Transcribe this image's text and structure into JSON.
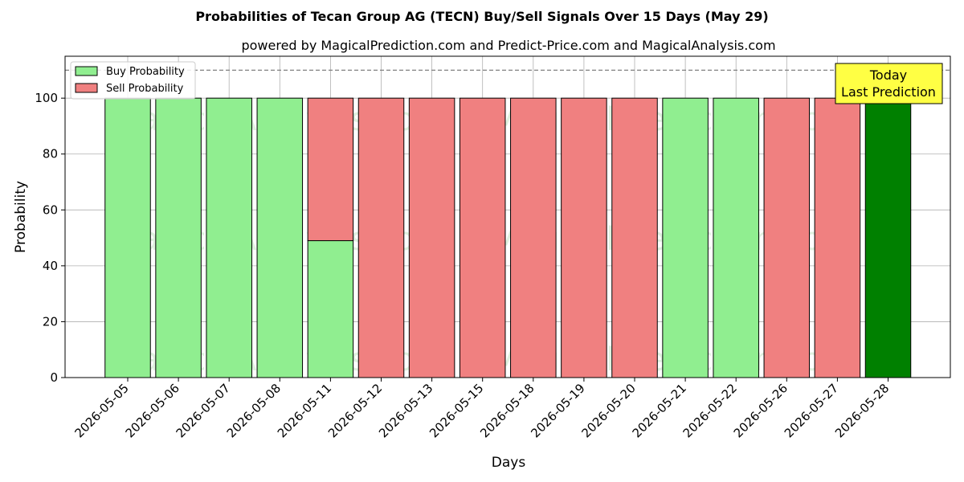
{
  "chart_data": {
    "type": "bar",
    "title": "Probabilities of Tecan Group AG (TECN) Buy/Sell Signals Over 15 Days (May 29)",
    "subtitle": "powered by MagicalPrediction.com and Predict-Price.com and MagicalAnalysis.com",
    "xlabel": "Days",
    "ylabel": "Probability",
    "ylim": [
      0,
      115
    ],
    "yticks": [
      0,
      20,
      40,
      60,
      80,
      100
    ],
    "reference_line": 110,
    "grid": true,
    "legend_position": "top-left",
    "categories": [
      "2026-05-05",
      "2026-05-06",
      "2026-05-07",
      "2026-05-08",
      "2026-05-11",
      "2026-05-12",
      "2026-05-13",
      "2026-05-15",
      "2026-05-18",
      "2026-05-19",
      "2026-05-20",
      "2026-05-21",
      "2026-05-22",
      "2026-05-26",
      "2026-05-27",
      "2026-05-28"
    ],
    "series": [
      {
        "name": "Buy Probability",
        "color": "#90ee90",
        "values": [
          100,
          100,
          100,
          100,
          49,
          0,
          0,
          0,
          0,
          0,
          0,
          100,
          100,
          0,
          0,
          100
        ]
      },
      {
        "name": "Sell Probability",
        "color": "#f08080",
        "values": [
          0,
          0,
          0,
          0,
          51,
          100,
          100,
          100,
          100,
          100,
          100,
          0,
          0,
          100,
          100,
          0
        ]
      }
    ],
    "highlight": {
      "category": "2026-05-28",
      "color": "#008000"
    },
    "annotation": {
      "line1": "Today",
      "line2": "Last Prediction",
      "background": "#ffff44"
    },
    "watermarks": [
      "MagicalAnalysis.com",
      "MagicalPrediction.com"
    ]
  }
}
